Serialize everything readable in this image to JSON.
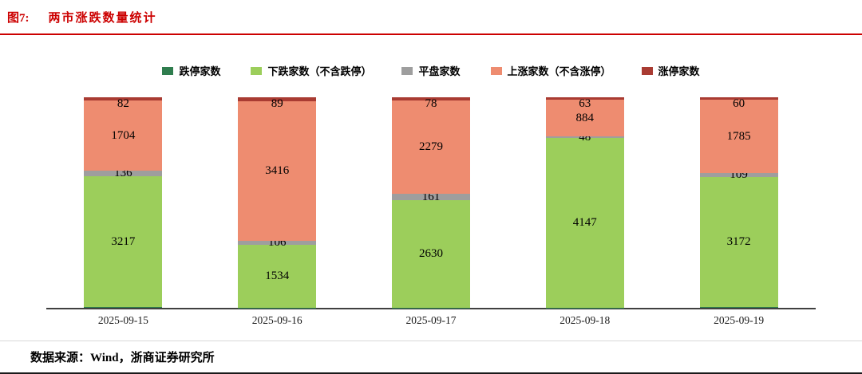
{
  "header": {
    "figure_label": "图7:",
    "title": "两市涨跌数量统计"
  },
  "footer": {
    "source": "数据来源：Wind，浙商证券研究所"
  },
  "colors": {
    "accent_red": "#cc0000",
    "axis": "#404040",
    "rule_light": "#d9d9d9",
    "rule_dark": "#1a1a1a"
  },
  "chart_data": {
    "type": "bar",
    "stacked": true,
    "title": "两市涨跌数量统计",
    "legend_position": "top",
    "grid": false,
    "value_labels": true,
    "categories": [
      "2025-09-15",
      "2025-09-16",
      "2025-09-17",
      "2025-09-18",
      "2025-09-19"
    ],
    "series": [
      {
        "name": "跌停家数",
        "color": "#2f7d4e",
        "values": [
          13,
          7,
          4,
          10,
          27
        ]
      },
      {
        "name": "下跌家数（不含跌停）",
        "color": "#9cce5b",
        "values": [
          3217,
          1534,
          2630,
          4147,
          3172
        ]
      },
      {
        "name": "平盘家数",
        "color": "#9e9e9e",
        "values": [
          136,
          106,
          161,
          48,
          109
        ]
      },
      {
        "name": "上涨家数（不含涨停）",
        "color": "#ee8c70",
        "values": [
          1704,
          3416,
          2279,
          884,
          1785
        ]
      },
      {
        "name": "涨停家数",
        "color": "#a93b32",
        "values": [
          82,
          89,
          78,
          63,
          60
        ]
      }
    ]
  }
}
